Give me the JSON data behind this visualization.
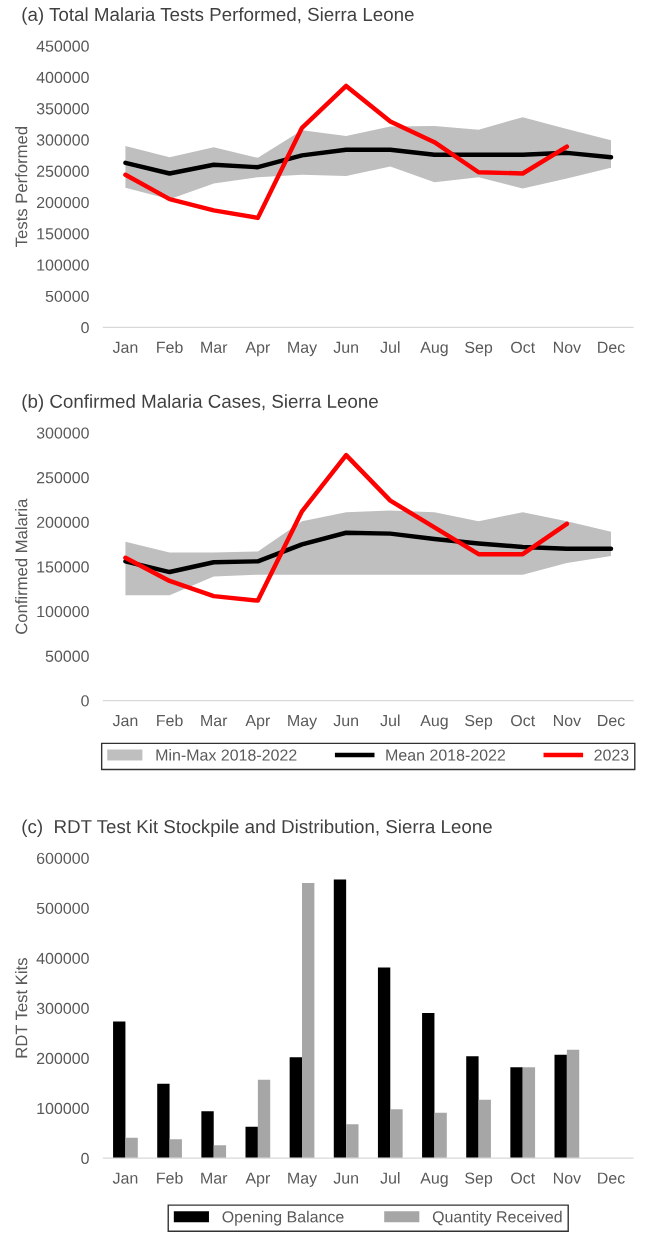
{
  "chart_data": [
    {
      "type": "line",
      "title": "(a) Total Malaria Tests Performed, Sierra Leone",
      "ylabel": "Tests Performed",
      "categories": [
        "Jan",
        "Feb",
        "Mar",
        "Apr",
        "May",
        "Jun",
        "Jul",
        "Aug",
        "Sep",
        "Oct",
        "Nov",
        "Dec"
      ],
      "ylim": [
        0,
        450000
      ],
      "yticks": [
        0,
        50000,
        100000,
        150000,
        200000,
        250000,
        300000,
        350000,
        400000,
        450000
      ],
      "series": [
        {
          "color": "#000000",
          "values": [
            263000,
            246000,
            260000,
            256000,
            275000,
            284000,
            284000,
            276000,
            276000,
            276000,
            279000,
            272000
          ],
          "lower": [
            223000,
            205000,
            230000,
            240000,
            244000,
            242000,
            257000,
            232000,
            240000,
            222000,
            238000,
            255000
          ],
          "upper": [
            290000,
            272000,
            288000,
            271000,
            315000,
            306000,
            321000,
            322000,
            316000,
            336000,
            317000,
            299000
          ]
        },
        {
          "color": "#ff0000",
          "values": [
            244000,
            205000,
            187000,
            175000,
            319000,
            386000,
            329000,
            296000,
            248000,
            246000,
            289000,
            null
          ]
        }
      ]
    },
    {
      "type": "line",
      "title": "(b) Confirmed Malaria Cases, Sierra Leone",
      "ylabel": "Confirmed Malaria",
      "categories": [
        "Jan",
        "Feb",
        "Mar",
        "Apr",
        "May",
        "Jun",
        "Jul",
        "Aug",
        "Sep",
        "Oct",
        "Nov",
        "Dec"
      ],
      "ylim": [
        0,
        300000
      ],
      "yticks": [
        0,
        50000,
        100000,
        150000,
        200000,
        250000,
        300000
      ],
      "legend": "bottom",
      "annotations": [
        "Min-Max 2018-2022"
      ],
      "series": [
        {
          "name": "Mean 2018-2022",
          "color": "#000000",
          "values": [
            156000,
            144000,
            155000,
            156000,
            175000,
            188000,
            187000,
            181000,
            176000,
            172000,
            170000,
            170000
          ],
          "lower": [
            118000,
            118000,
            139000,
            141000,
            141000,
            141000,
            141000,
            141000,
            141000,
            141000,
            154000,
            162000
          ],
          "upper": [
            178000,
            166000,
            166000,
            167000,
            201000,
            211000,
            213000,
            211000,
            201000,
            211000,
            201000,
            189000
          ]
        },
        {
          "name": "2023",
          "color": "#ff0000",
          "values": [
            160000,
            134000,
            117000,
            112000,
            212000,
            275000,
            224000,
            194000,
            164000,
            164000,
            198000,
            null
          ]
        }
      ]
    },
    {
      "type": "bar",
      "title": "(c)  RDT Test Kit Stockpile and Distribution, Sierra Leone",
      "ylabel": "RDT Test Kits",
      "categories": [
        "Jan",
        "Feb",
        "Mar",
        "Apr",
        "May",
        "Jun",
        "Jul",
        "Aug",
        "Sep",
        "Oct",
        "Nov",
        "Dec"
      ],
      "ylim": [
        0,
        600000
      ],
      "yticks": [
        0,
        100000,
        200000,
        300000,
        400000,
        500000,
        600000
      ],
      "legend": "bottom",
      "series": [
        {
          "name": "Opening Balance",
          "color": "#000000",
          "values": [
            273000,
            149000,
            94000,
            63000,
            202000,
            557000,
            381000,
            290000,
            204000,
            182000,
            207000,
            null
          ]
        },
        {
          "name": "Quantity Received",
          "color": "#a6a6a6",
          "values": [
            41000,
            38000,
            26000,
            157000,
            550000,
            68000,
            98000,
            91000,
            117000,
            182000,
            217000,
            null
          ]
        }
      ]
    }
  ]
}
